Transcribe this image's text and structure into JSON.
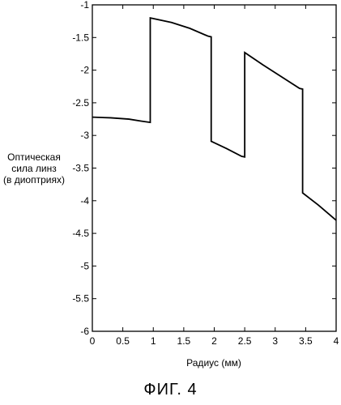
{
  "chart_data": {
    "type": "line",
    "title": "",
    "xlabel": "Радиус (мм)",
    "ylabel_lines": [
      "Оптическая",
      "сила линз",
      "(в диоптриях)"
    ],
    "xlim": [
      0,
      4
    ],
    "ylim": [
      -6,
      -1
    ],
    "xticks": [
      0,
      0.5,
      1,
      1.5,
      2,
      2.5,
      3,
      3.5,
      4
    ],
    "xtick_labels": [
      "0",
      "0.5",
      "1",
      "1.5",
      "2",
      "2.5",
      "3",
      "3.5",
      "4"
    ],
    "yticks": [
      -1,
      -1.5,
      -2,
      -2.5,
      -3,
      -3.5,
      -4,
      -4.5,
      -5,
      -5.5,
      -6
    ],
    "ytick_labels": [
      "-1",
      "-1.5",
      "-2",
      "-2.5",
      "-3",
      "-3.5",
      "-4",
      "-4.5",
      "-5",
      "-5.5",
      "-6"
    ],
    "grid": false,
    "series": [
      {
        "color": "#000000",
        "x": [
          0,
          0.3,
          0.6,
          0.8,
          0.95,
          0.95,
          1.3,
          1.6,
          1.9,
          1.95,
          1.95,
          2.2,
          2.45,
          2.5,
          2.5,
          2.8,
          3.1,
          3.4,
          3.45,
          3.45,
          3.7,
          4.0
        ],
        "y": [
          -2.72,
          -2.73,
          -2.75,
          -2.78,
          -2.8,
          -1.2,
          -1.27,
          -1.36,
          -1.48,
          -1.49,
          -3.09,
          -3.2,
          -3.32,
          -3.33,
          -1.73,
          -1.92,
          -2.1,
          -2.28,
          -2.29,
          -3.88,
          -4.06,
          -4.3
        ]
      }
    ]
  },
  "caption": "ФИГ. 4"
}
